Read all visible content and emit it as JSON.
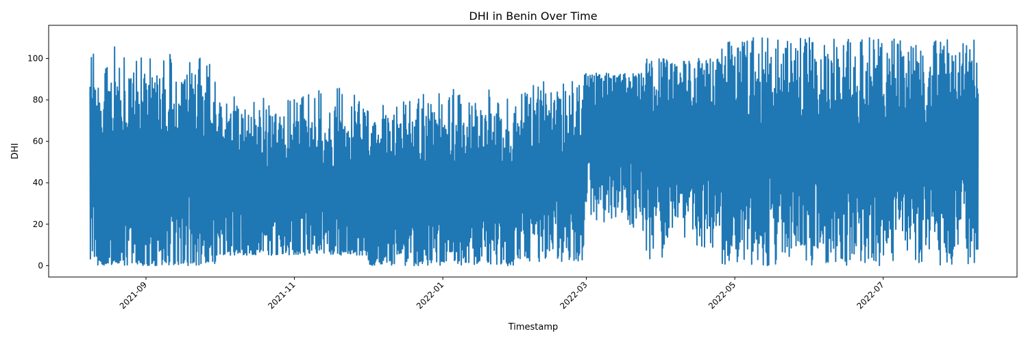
{
  "chart_data": {
    "type": "line",
    "title": "DHI in Benin Over Time",
    "xlabel": "Timestamp",
    "ylabel": "DHI",
    "x_axis_type": "date",
    "xlim": [
      "2021-07-23",
      "2022-08-25"
    ],
    "ylim": [
      -5.5,
      116
    ],
    "x_ticks": [
      "2021-09",
      "2021-11",
      "2022-01",
      "2022-03",
      "2022-05",
      "2022-07"
    ],
    "x_tick_dates": [
      "2021-09-01",
      "2021-11-01",
      "2022-01-01",
      "2022-03-01",
      "2022-05-01",
      "2022-07-01"
    ],
    "y_ticks": [
      0,
      20,
      40,
      60,
      80,
      100
    ],
    "grid": false,
    "legend": "none",
    "series_color": "#1f77b4",
    "series": [
      {
        "x_range": [
          "2021-08-09",
          "2022-08-09"
        ],
        "segments": [
          {
            "start": "2021-08-09",
            "end": "2021-09-30",
            "min": 0,
            "max": 107,
            "mean": 45
          },
          {
            "start": "2021-09-30",
            "end": "2021-12-01",
            "min": 5,
            "max": 92,
            "mean": 38
          },
          {
            "start": "2021-12-01",
            "end": "2022-01-31",
            "min": 0,
            "max": 88,
            "mean": 36
          },
          {
            "start": "2022-01-31",
            "end": "2022-02-28",
            "min": 2,
            "max": 89,
            "mean": 42
          },
          {
            "start": "2022-02-28",
            "end": "2022-03-25",
            "min": 10,
            "max": 93,
            "mean": 62
          },
          {
            "start": "2022-03-25",
            "end": "2022-04-25",
            "min": 2,
            "max": 100,
            "mean": 58
          },
          {
            "start": "2022-04-25",
            "end": "2022-08-09",
            "min": 0,
            "max": 110,
            "mean": 56
          }
        ]
      }
    ]
  }
}
